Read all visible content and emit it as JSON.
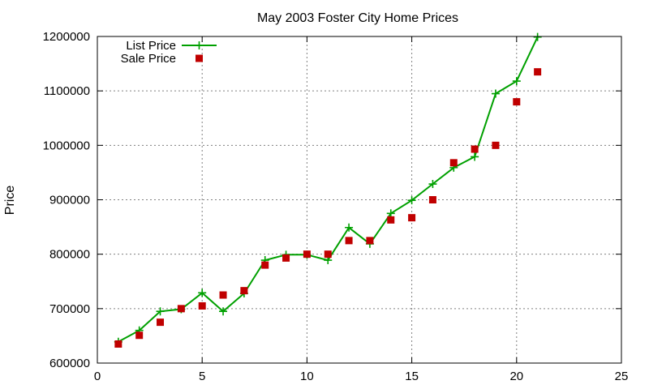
{
  "chart_data": {
    "type": "line",
    "title": "May 2003 Foster City Home Prices",
    "xlabel": "",
    "ylabel": "Price",
    "xlim": [
      0,
      25
    ],
    "ylim": [
      600000,
      1200000
    ],
    "x_ticks": [
      0,
      5,
      10,
      15,
      20,
      25
    ],
    "y_ticks": [
      600000,
      700000,
      800000,
      900000,
      1000000,
      1100000,
      1200000
    ],
    "grid": true,
    "legend_position": "top-left",
    "series": [
      {
        "name": "List Price",
        "style": "line+cross",
        "color": "#00a000",
        "x": [
          1,
          2,
          3,
          4,
          5,
          6,
          7,
          8,
          9,
          10,
          11,
          12,
          13,
          14,
          15,
          16,
          17,
          18,
          19,
          20,
          21
        ],
        "y": [
          639000,
          660000,
          695000,
          699000,
          729000,
          695000,
          728000,
          789000,
          799000,
          799000,
          789000,
          849000,
          819000,
          875000,
          899000,
          929000,
          959000,
          979000,
          1095000,
          1118000,
          1199000
        ]
      },
      {
        "name": "Sale Price",
        "style": "square",
        "color": "#c00000",
        "x": [
          1,
          2,
          3,
          4,
          5,
          6,
          7,
          8,
          9,
          10,
          11,
          12,
          13,
          14,
          15,
          16,
          17,
          18,
          19,
          20,
          21
        ],
        "y": [
          635000,
          651000,
          675000,
          700000,
          705000,
          725000,
          733000,
          780000,
          793000,
          800000,
          800000,
          825000,
          825000,
          863000,
          867000,
          900000,
          968000,
          993000,
          1000000,
          1080000,
          1135000
        ]
      }
    ]
  }
}
